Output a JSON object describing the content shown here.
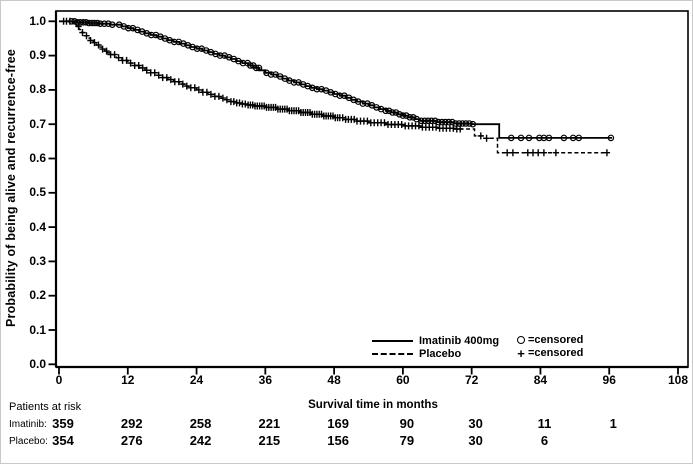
{
  "figure": {
    "background": "#ffffff",
    "ink": "#000000"
  },
  "chart_data": {
    "type": "line",
    "subtype": "kaplan-meier-step",
    "title": "",
    "ylabel": "Probability of being alive and recurrence-free",
    "xlabel": "Survival time in months",
    "xlim": [
      0,
      108
    ],
    "ylim": [
      0.0,
      1.0
    ],
    "x_ticks": [
      0,
      12,
      24,
      36,
      48,
      60,
      72,
      84,
      96,
      108
    ],
    "y_ticks": [
      "0.0",
      "0.1",
      "0.2",
      "0.3",
      "0.4",
      "0.5",
      "0.6",
      "0.7",
      "0.8",
      "0.9",
      "1.0"
    ],
    "grid": false,
    "legend_position": "inside-bottom-right",
    "legend": {
      "censor_items": [
        {
          "marker": "circle",
          "symbol_char": "○",
          "text": "=censored"
        },
        {
          "marker": "plus",
          "symbol_char": "+",
          "text": "=censored"
        }
      ]
    },
    "series": [
      {
        "name": "Imatinib 400mg",
        "line": "solid",
        "censor_marker": "circle",
        "steps": [
          [
            0,
            1.0
          ],
          [
            3,
            0.997
          ],
          [
            5,
            0.995
          ],
          [
            7,
            0.993
          ],
          [
            9,
            0.99
          ],
          [
            11,
            0.985
          ],
          [
            12,
            0.98
          ],
          [
            13,
            0.975
          ],
          [
            14,
            0.97
          ],
          [
            15,
            0.965
          ],
          [
            16,
            0.96
          ],
          [
            17,
            0.955
          ],
          [
            18,
            0.95
          ],
          [
            19,
            0.945
          ],
          [
            20,
            0.94
          ],
          [
            21,
            0.935
          ],
          [
            22,
            0.93
          ],
          [
            23,
            0.925
          ],
          [
            24,
            0.92
          ],
          [
            25,
            0.915
          ],
          [
            26,
            0.91
          ],
          [
            27,
            0.905
          ],
          [
            28,
            0.9
          ],
          [
            29,
            0.895
          ],
          [
            30,
            0.89
          ],
          [
            31,
            0.884
          ],
          [
            32,
            0.878
          ],
          [
            33,
            0.871
          ],
          [
            34,
            0.864
          ],
          [
            35,
            0.857
          ],
          [
            36,
            0.85
          ],
          [
            37,
            0.845
          ],
          [
            38,
            0.839
          ],
          [
            39,
            0.833
          ],
          [
            40,
            0.827
          ],
          [
            41,
            0.822
          ],
          [
            42,
            0.816
          ],
          [
            43,
            0.811
          ],
          [
            44,
            0.806
          ],
          [
            45,
            0.802
          ],
          [
            46,
            0.798
          ],
          [
            47,
            0.793
          ],
          [
            48,
            0.788
          ],
          [
            49,
            0.783
          ],
          [
            50,
            0.777
          ],
          [
            51,
            0.771
          ],
          [
            52,
            0.766
          ],
          [
            53,
            0.76
          ],
          [
            54,
            0.755
          ],
          [
            55,
            0.749
          ],
          [
            56,
            0.744
          ],
          [
            57,
            0.739
          ],
          [
            58,
            0.734
          ],
          [
            59,
            0.729
          ],
          [
            60,
            0.725
          ],
          [
            61,
            0.72
          ],
          [
            62,
            0.715
          ],
          [
            63,
            0.71
          ],
          [
            66,
            0.706
          ],
          [
            69,
            0.702
          ],
          [
            72,
            0.7
          ],
          [
            76.8,
            0.66
          ],
          [
            96.5,
            0.66
          ]
        ],
        "censor_times": [
          2.2,
          2.7,
          3.2,
          3.7,
          4.2,
          4.7,
          5.2,
          5.7,
          6.2,
          6.7,
          7.2,
          7.9,
          8.6,
          9.3,
          10.5,
          11.3,
          12.1,
          12.9,
          13.7,
          14.5,
          15.3,
          16.1,
          16.9,
          17.7,
          18.5,
          19.3,
          20.1,
          20.9,
          21.7,
          22.5,
          23.3,
          24.1,
          24.9,
          25.7,
          26.5,
          27.3,
          28.1,
          28.9,
          29.7,
          30.5,
          31.3,
          32.1,
          32.9,
          33.4,
          33.9,
          34.4,
          34.9,
          36.2,
          37,
          37.8,
          38.6,
          39.4,
          40.2,
          41,
          41.8,
          42.6,
          43.4,
          44.2,
          45,
          45.8,
          46.6,
          47.4,
          48.2,
          49,
          49.8,
          50.6,
          51.4,
          52.2,
          53,
          53.8,
          54.6,
          55.4,
          56.2,
          57,
          57.6,
          58.2,
          58.8,
          59.4,
          60,
          60.6,
          61.2,
          61.8,
          62.4,
          63.2,
          63.8,
          64.4,
          65,
          65.6,
          66.2,
          66.8,
          67.4,
          68,
          68.6,
          69.2,
          69.8,
          70.4,
          71,
          71.6,
          72.2,
          78.9,
          80.6,
          82,
          83.8,
          84.6,
          85.5,
          88.1,
          89.7,
          90.7,
          96.3
        ]
      },
      {
        "name": "Placebo",
        "line": "dashed",
        "censor_marker": "plus",
        "steps": [
          [
            0,
            1.0
          ],
          [
            2.5,
            0.993
          ],
          [
            3,
            0.985
          ],
          [
            3.5,
            0.976
          ],
          [
            4,
            0.967
          ],
          [
            4.5,
            0.958
          ],
          [
            5,
            0.951
          ],
          [
            5.5,
            0.944
          ],
          [
            6,
            0.938
          ],
          [
            6.5,
            0.931
          ],
          [
            7,
            0.925
          ],
          [
            7.5,
            0.919
          ],
          [
            8,
            0.913
          ],
          [
            8.5,
            0.908
          ],
          [
            9,
            0.903
          ],
          [
            10,
            0.894
          ],
          [
            11,
            0.886
          ],
          [
            12,
            0.878
          ],
          [
            13,
            0.871
          ],
          [
            14,
            0.864
          ],
          [
            15,
            0.857
          ],
          [
            16,
            0.85
          ],
          [
            17,
            0.843
          ],
          [
            18,
            0.836
          ],
          [
            19,
            0.83
          ],
          [
            20,
            0.824
          ],
          [
            21,
            0.817
          ],
          [
            22,
            0.811
          ],
          [
            23,
            0.806
          ],
          [
            24,
            0.8
          ],
          [
            25,
            0.793
          ],
          [
            26,
            0.787
          ],
          [
            27,
            0.781
          ],
          [
            28,
            0.776
          ],
          [
            29,
            0.771
          ],
          [
            30,
            0.766
          ],
          [
            31,
            0.762
          ],
          [
            32,
            0.759
          ],
          [
            33,
            0.756
          ],
          [
            34,
            0.753
          ],
          [
            36,
            0.749
          ],
          [
            38,
            0.744
          ],
          [
            40,
            0.739
          ],
          [
            42,
            0.734
          ],
          [
            44,
            0.729
          ],
          [
            46,
            0.724
          ],
          [
            48,
            0.719
          ],
          [
            50,
            0.714
          ],
          [
            52,
            0.709
          ],
          [
            54,
            0.704
          ],
          [
            57,
            0.699
          ],
          [
            60,
            0.695
          ],
          [
            63,
            0.691
          ],
          [
            66,
            0.688
          ],
          [
            69,
            0.686
          ],
          [
            72.5,
            0.666
          ],
          [
            74,
            0.659
          ],
          [
            76.5,
            0.617
          ],
          [
            95.8,
            0.617
          ]
        ],
        "censor_times": [
          0.8,
          1.3,
          1.9,
          3.4,
          4.1,
          4.8,
          5.5,
          6.2,
          6.9,
          7.6,
          8.3,
          9,
          9.7,
          10.4,
          11.1,
          11.8,
          12.5,
          13.2,
          13.9,
          14.6,
          15.3,
          16,
          16.7,
          17.4,
          18.1,
          18.8,
          19.5,
          20.2,
          20.9,
          21.6,
          22.3,
          23,
          23.7,
          24.4,
          25.1,
          25.8,
          26.5,
          27.2,
          27.9,
          28.6,
          29.3,
          30,
          30.5,
          31,
          31.5,
          32,
          32.5,
          33,
          33.4,
          33.8,
          34.2,
          34.6,
          35,
          35.4,
          35.8,
          36.2,
          36.6,
          37,
          37.4,
          37.8,
          38.2,
          38.6,
          39,
          39.4,
          39.8,
          40.2,
          40.6,
          41,
          41.4,
          41.8,
          42.2,
          42.6,
          43,
          43.4,
          43.8,
          44.2,
          44.6,
          45,
          45.4,
          45.8,
          46.2,
          46.6,
          47,
          47.4,
          47.8,
          48.2,
          48.6,
          49,
          49.5,
          50,
          50.5,
          51,
          51.5,
          52,
          52.6,
          53.2,
          53.8,
          54.4,
          55,
          55.6,
          56.2,
          56.8,
          57.4,
          58,
          58.6,
          59.2,
          59.8,
          60.4,
          61,
          61.6,
          62.2,
          62.8,
          63.4,
          64,
          64.6,
          65.2,
          65.8,
          66.4,
          67,
          67.6,
          68.2,
          68.8,
          69.4,
          70,
          73.6,
          74.6,
          78.2,
          79.2,
          81.8,
          82.7,
          83.6,
          84.6,
          86.7,
          95.6
        ]
      }
    ]
  },
  "risk_table": {
    "header": "Patients at risk",
    "rows": [
      {
        "label": "Imatinib:",
        "times": [
          0,
          12,
          24,
          36,
          48,
          60,
          72,
          84,
          96
        ],
        "counts": [
          359,
          292,
          258,
          221,
          169,
          90,
          30,
          11,
          1
        ]
      },
      {
        "label": "Placebo:",
        "times": [
          0,
          12,
          24,
          36,
          48,
          60,
          72,
          84
        ],
        "counts": [
          354,
          276,
          242,
          215,
          156,
          79,
          30,
          6
        ]
      }
    ]
  }
}
